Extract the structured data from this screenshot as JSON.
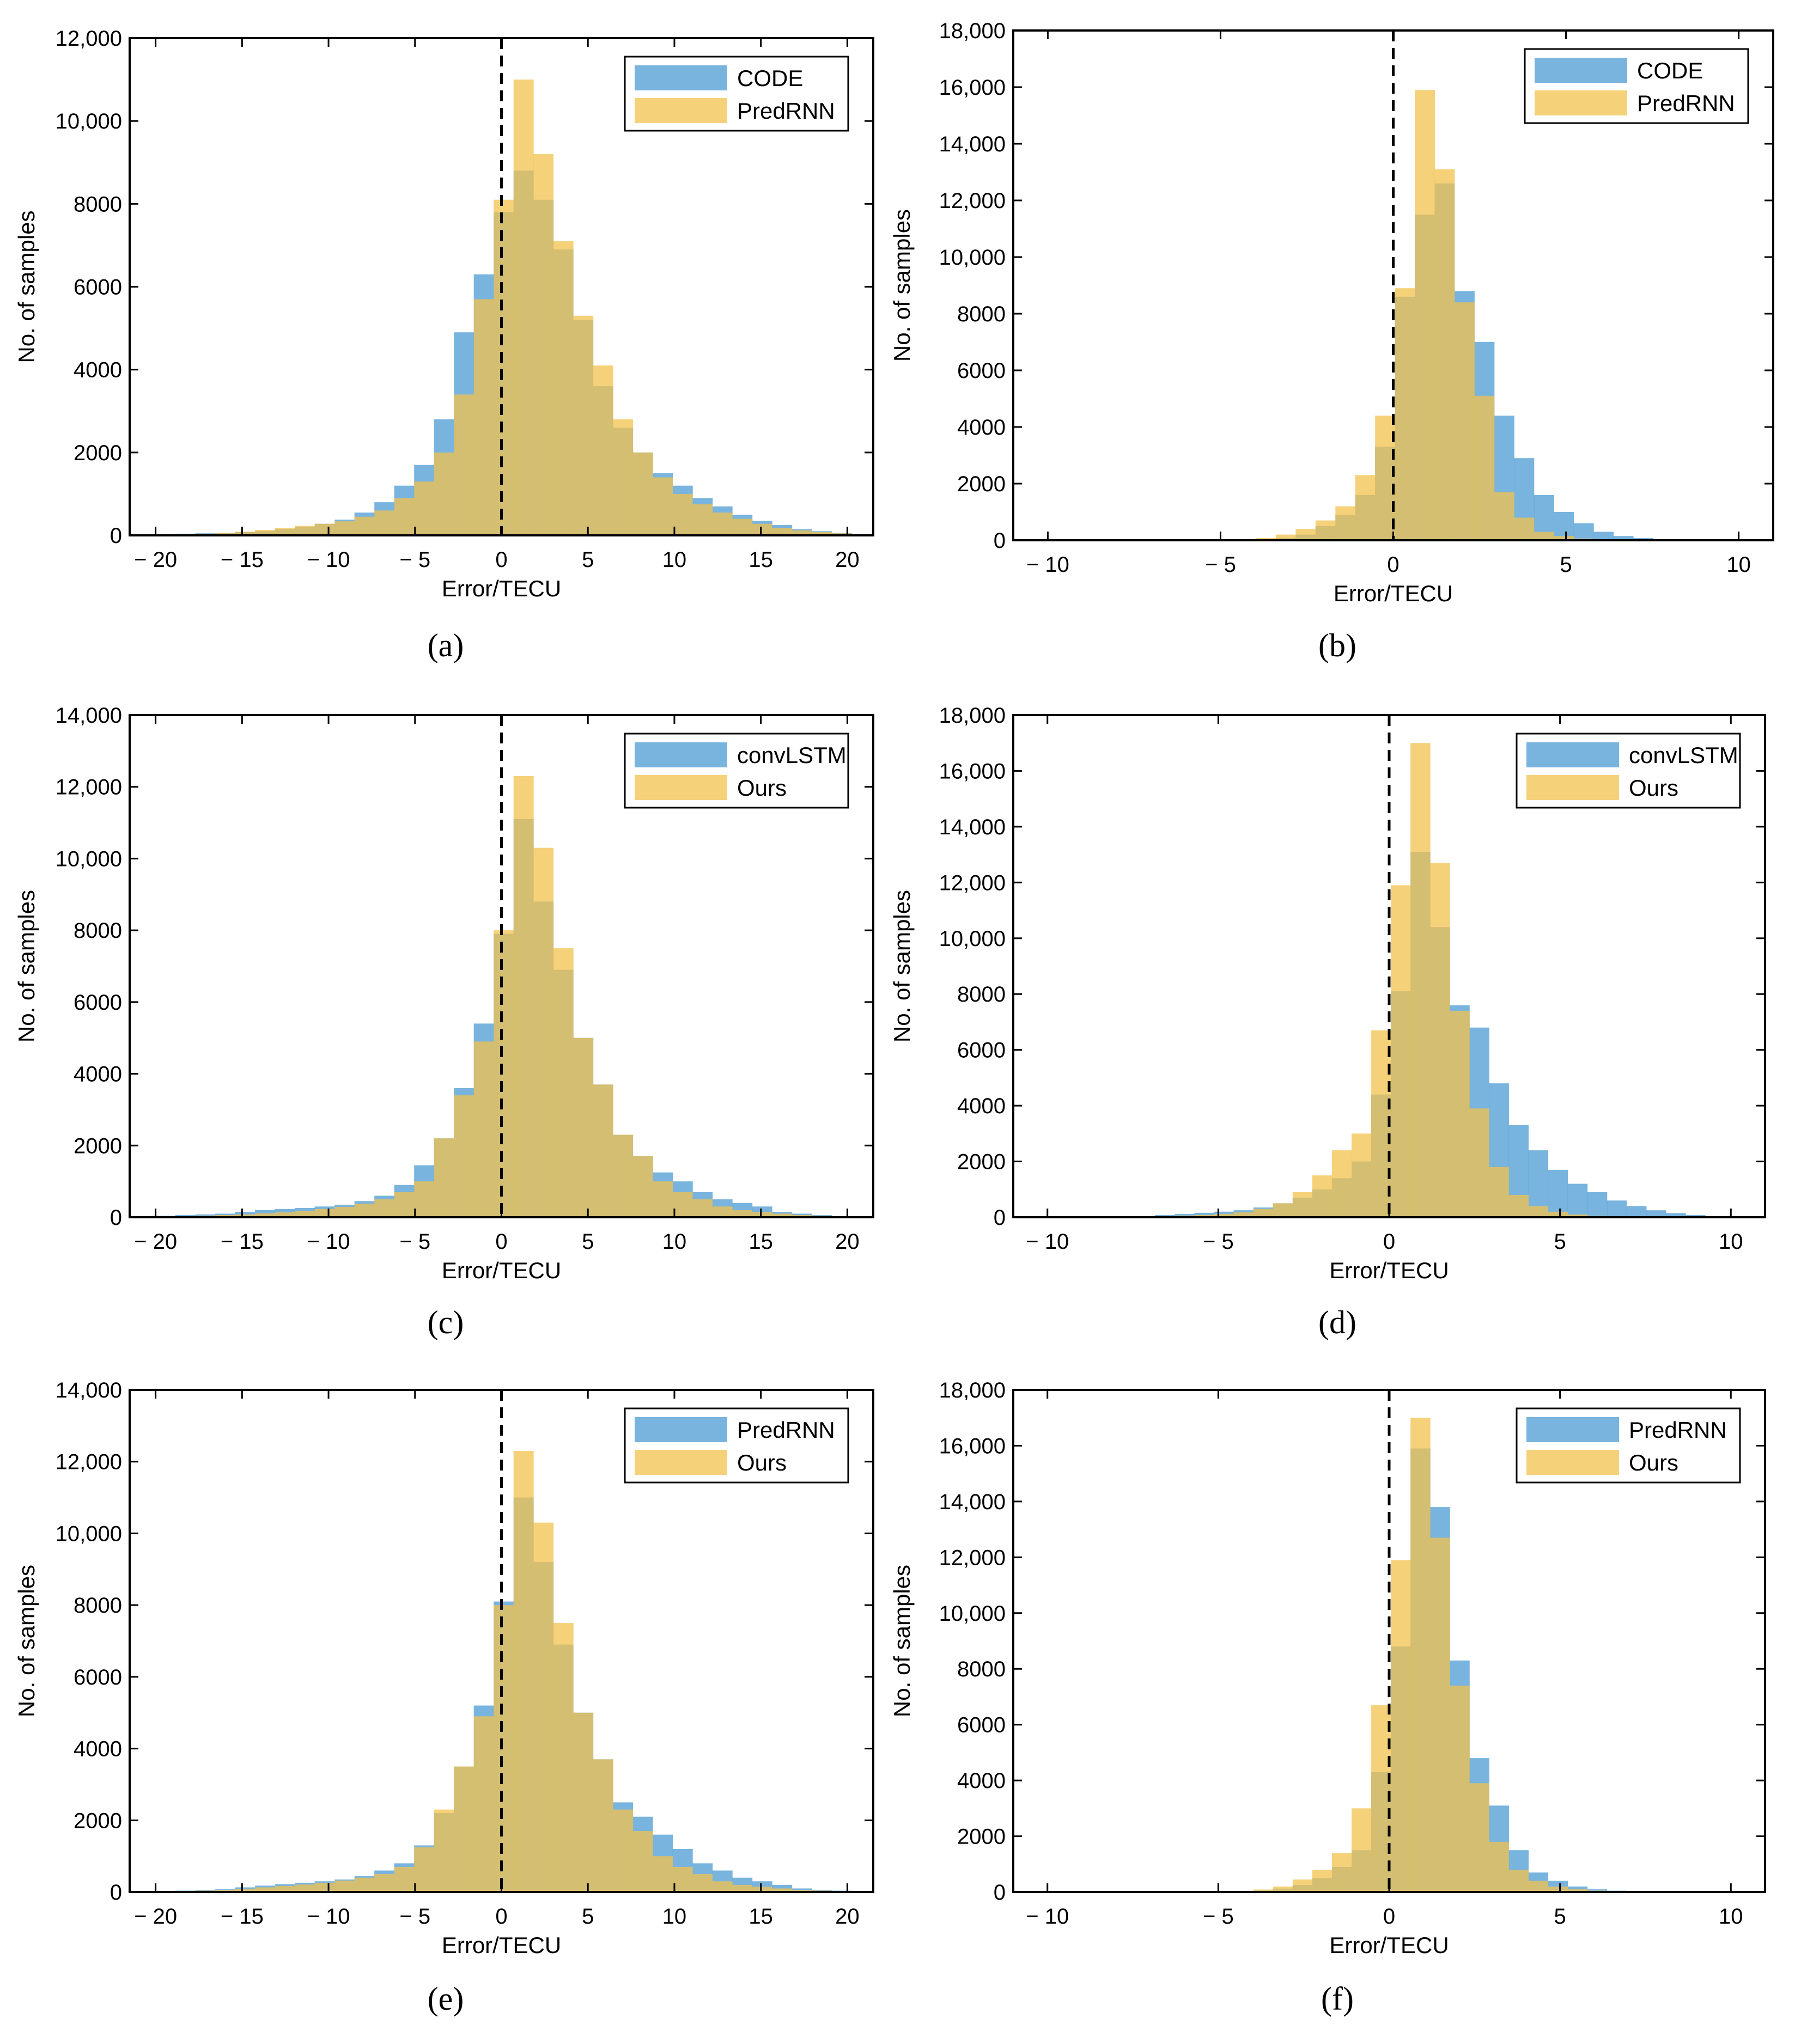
{
  "figure": {
    "colors": {
      "series1": "#4B9BD3",
      "series2": "#F2C24E",
      "overlap": "#A8A464",
      "axis": "#000000"
    },
    "opacity": 0.75
  },
  "chart_data": [
    {
      "id": "a",
      "panel_label": "(a)",
      "type": "bar",
      "xlabel": "Error/TECU",
      "ylabel": "No. of samples",
      "xlim": [
        -21.5,
        21.5
      ],
      "ylim": [
        0,
        12000
      ],
      "xticks": [
        -20,
        -15,
        -10,
        -5,
        0,
        5,
        10,
        15,
        20
      ],
      "xtick_labels": [
        "− 20",
        "− 15",
        "− 10",
        "− 5",
        "0",
        "5",
        "10",
        "15",
        "20"
      ],
      "yticks": [
        0,
        2000,
        4000,
        6000,
        8000,
        10000,
        12000
      ],
      "ytick_labels": [
        "0",
        "2000",
        "4000",
        "6000",
        "8000",
        "10,000",
        "12,000"
      ],
      "zero_line": true,
      "legend_position": "top-right",
      "bin_start": -20,
      "bin_width": 1.15,
      "series": [
        {
          "name": "CODE",
          "values": [
            30,
            40,
            50,
            60,
            80,
            100,
            150,
            200,
            280,
            380,
            550,
            800,
            1200,
            1700,
            2800,
            4900,
            6300,
            7800,
            8800,
            8100,
            6900,
            5200,
            3600,
            2600,
            2000,
            1500,
            1200,
            900,
            700,
            500,
            350,
            250,
            150,
            100,
            60,
            30
          ]
        },
        {
          "name": "PredRNN",
          "values": [
            20,
            30,
            40,
            60,
            90,
            130,
            180,
            230,
            280,
            340,
            450,
            600,
            900,
            1300,
            2000,
            3400,
            5700,
            8100,
            11000,
            9200,
            7100,
            5300,
            4100,
            2800,
            2000,
            1400,
            1000,
            750,
            550,
            400,
            280,
            180,
            120,
            80,
            50,
            30
          ]
        }
      ]
    },
    {
      "id": "b",
      "panel_label": "(b)",
      "type": "bar",
      "xlabel": "Error/TECU",
      "ylabel": "No. of samples",
      "xlim": [
        -11,
        11
      ],
      "ylim": [
        0,
        18000
      ],
      "xticks": [
        -10,
        -5,
        0,
        5,
        10
      ],
      "xtick_labels": [
        "− 10",
        "− 5",
        "0",
        "5",
        "10"
      ],
      "yticks": [
        0,
        2000,
        4000,
        6000,
        8000,
        10000,
        12000,
        14000,
        16000,
        18000
      ],
      "ytick_labels": [
        "0",
        "2000",
        "4000",
        "6000",
        "8000",
        "10,000",
        "12,000",
        "14,000",
        "16,000",
        "18,000"
      ],
      "zero_line": true,
      "legend_position": "top-right",
      "bin_start": -8,
      "bin_width": 0.575,
      "series": [
        {
          "name": "CODE",
          "values": [
            0,
            0,
            0,
            0,
            0,
            0,
            10,
            30,
            80,
            200,
            500,
            900,
            1600,
            3300,
            8600,
            11500,
            12600,
            8800,
            7000,
            4400,
            2900,
            1600,
            1000,
            600,
            300,
            150,
            80,
            40,
            20,
            10
          ]
        },
        {
          "name": "PredRNN",
          "values": [
            0,
            0,
            0,
            0,
            0,
            0,
            20,
            80,
            200,
            400,
            700,
            1200,
            2300,
            4400,
            8900,
            15900,
            13100,
            8400,
            5100,
            1700,
            800,
            300,
            150,
            60,
            20,
            10,
            5,
            0,
            0,
            0
          ]
        }
      ]
    },
    {
      "id": "c",
      "panel_label": "(c)",
      "type": "bar",
      "xlabel": "Error/TECU",
      "ylabel": "No. of samples",
      "xlim": [
        -21.5,
        21.5
      ],
      "ylim": [
        0,
        14000
      ],
      "xticks": [
        -20,
        -15,
        -10,
        -5,
        0,
        5,
        10,
        15,
        20
      ],
      "xtick_labels": [
        "− 20",
        "− 15",
        "− 10",
        "− 5",
        "0",
        "5",
        "10",
        "15",
        "20"
      ],
      "yticks": [
        0,
        2000,
        4000,
        6000,
        8000,
        10000,
        12000,
        14000
      ],
      "ytick_labels": [
        "0",
        "2000",
        "4000",
        "6000",
        "8000",
        "10,000",
        "12,000",
        "14,000"
      ],
      "zero_line": true,
      "legend_position": "top-right",
      "bin_start": -20,
      "bin_width": 1.15,
      "series": [
        {
          "name": "convLSTM",
          "values": [
            40,
            60,
            80,
            100,
            150,
            200,
            230,
            260,
            300,
            350,
            450,
            600,
            900,
            1450,
            2200,
            3600,
            5400,
            7900,
            11100,
            8800,
            6900,
            5000,
            3700,
            2300,
            1700,
            1250,
            1000,
            700,
            500,
            400,
            300,
            150,
            100,
            60,
            30,
            20
          ]
        },
        {
          "name": "Ours",
          "values": [
            20,
            30,
            40,
            60,
            80,
            110,
            140,
            180,
            230,
            290,
            380,
            500,
            700,
            1000,
            2200,
            3400,
            4900,
            8000,
            12300,
            10300,
            7500,
            5000,
            3700,
            2300,
            1700,
            1000,
            700,
            500,
            300,
            200,
            150,
            100,
            60,
            40,
            20,
            10
          ]
        }
      ]
    },
    {
      "id": "d",
      "panel_label": "(d)",
      "type": "bar",
      "xlabel": "Error/TECU",
      "ylabel": "No. of samples",
      "xlim": [
        -11,
        11
      ],
      "ylim": [
        0,
        18000
      ],
      "xticks": [
        -10,
        -5,
        0,
        5,
        10
      ],
      "xtick_labels": [
        "− 10",
        "− 5",
        "0",
        "5",
        "10"
      ],
      "yticks": [
        0,
        2000,
        4000,
        6000,
        8000,
        10000,
        12000,
        14000,
        16000,
        18000
      ],
      "ytick_labels": [
        "0",
        "2000",
        "4000",
        "6000",
        "8000",
        "10,000",
        "12,000",
        "14,000",
        "16,000",
        "18,000"
      ],
      "zero_line": true,
      "legend_position": "top-right",
      "bin_start": -8,
      "bin_width": 0.575,
      "series": [
        {
          "name": "convLSTM",
          "values": [
            20,
            40,
            80,
            120,
            160,
            200,
            250,
            350,
            500,
            700,
            1000,
            1400,
            2000,
            4400,
            8100,
            13100,
            10400,
            7600,
            6800,
            4800,
            3300,
            2400,
            1700,
            1200,
            900,
            600,
            400,
            250,
            150,
            80
          ]
        },
        {
          "name": "Ours",
          "values": [
            10,
            20,
            40,
            60,
            80,
            120,
            180,
            300,
            500,
            900,
            1500,
            2400,
            3000,
            6700,
            11900,
            17000,
            12700,
            7400,
            3900,
            1800,
            800,
            400,
            200,
            100,
            50,
            30,
            20,
            10,
            5,
            0
          ]
        }
      ]
    },
    {
      "id": "e",
      "panel_label": "(e)",
      "type": "bar",
      "xlabel": "Error/TECU",
      "ylabel": "No. of samples",
      "xlim": [
        -21.5,
        21.5
      ],
      "ylim": [
        0,
        14000
      ],
      "xticks": [
        -20,
        -15,
        -10,
        -5,
        0,
        5,
        10,
        15,
        20
      ],
      "xtick_labels": [
        "− 20",
        "− 15",
        "− 10",
        "− 5",
        "0",
        "5",
        "10",
        "15",
        "20"
      ],
      "yticks": [
        0,
        2000,
        4000,
        6000,
        8000,
        10000,
        12000,
        14000
      ],
      "ytick_labels": [
        "0",
        "2000",
        "4000",
        "6000",
        "8000",
        "10,000",
        "12,000",
        "14,000"
      ],
      "zero_line": true,
      "legend_position": "top-right",
      "bin_start": -20,
      "bin_width": 1.15,
      "series": [
        {
          "name": "PredRNN",
          "values": [
            30,
            40,
            60,
            80,
            130,
            180,
            220,
            260,
            300,
            350,
            450,
            600,
            800,
            1300,
            2200,
            3500,
            5200,
            8100,
            11000,
            9200,
            6900,
            5000,
            3700,
            2500,
            2100,
            1600,
            1200,
            800,
            600,
            400,
            300,
            200,
            100,
            60,
            40,
            20
          ]
        },
        {
          "name": "Ours",
          "values": [
            20,
            30,
            40,
            60,
            90,
            130,
            170,
            210,
            260,
            320,
            400,
            500,
            700,
            1250,
            2300,
            3500,
            4900,
            8000,
            12300,
            10300,
            7500,
            5000,
            3700,
            2300,
            1700,
            1000,
            700,
            500,
            300,
            200,
            150,
            100,
            60,
            40,
            20,
            10
          ]
        }
      ]
    },
    {
      "id": "f",
      "panel_label": "(f)",
      "type": "bar",
      "xlabel": "Error/TECU",
      "ylabel": "No. of samples",
      "xlim": [
        -11,
        11
      ],
      "ylim": [
        0,
        18000
      ],
      "xticks": [
        -10,
        -5,
        0,
        5,
        10
      ],
      "xtick_labels": [
        "− 10",
        "− 5",
        "0",
        "5",
        "10"
      ],
      "yticks": [
        0,
        2000,
        4000,
        6000,
        8000,
        10000,
        12000,
        14000,
        16000,
        18000
      ],
      "ytick_labels": [
        "0",
        "2000",
        "4000",
        "6000",
        "8000",
        "10,000",
        "12,000",
        "14,000",
        "16,000",
        "18,000"
      ],
      "zero_line": true,
      "legend_position": "top-right",
      "bin_start": -8,
      "bin_width": 0.575,
      "series": [
        {
          "name": "PredRNN",
          "values": [
            0,
            0,
            0,
            0,
            0,
            0,
            20,
            60,
            120,
            250,
            500,
            900,
            1500,
            4300,
            8800,
            15900,
            13800,
            8300,
            4800,
            3100,
            1500,
            700,
            400,
            200,
            100,
            50,
            20,
            10,
            5,
            0
          ]
        },
        {
          "name": "Ours",
          "values": [
            0,
            0,
            0,
            0,
            0,
            0,
            30,
            90,
            200,
            450,
            800,
            1400,
            3000,
            6700,
            11900,
            17000,
            12700,
            7400,
            3900,
            1800,
            800,
            400,
            200,
            100,
            50,
            20,
            10,
            5,
            0,
            0
          ]
        }
      ]
    }
  ]
}
